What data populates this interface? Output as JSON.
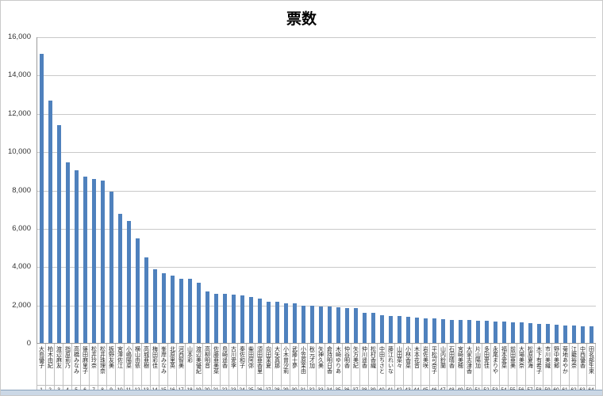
{
  "chart_data": {
    "type": "bar",
    "title": "票数",
    "legend": "none",
    "grid": true,
    "bar_color": "#4F81BD",
    "ylim": [
      0,
      16000
    ],
    "ytick_step": 2000,
    "ytick_labels": [
      "16,000",
      "14,000",
      "12,000",
      "10,000",
      "8,000",
      "6,000",
      "4,000",
      "2,000",
      "0"
    ],
    "categories": [
      "大島優子",
      "柏木由紀",
      "渡辺麻友",
      "指原莉乃",
      "高橋みなみ",
      "篠田麻里子",
      "松井玲奈",
      "松井珠理奈",
      "板野友美",
      "宮澤佐江",
      "小嶋陽菜",
      "横山由依",
      "高城亜樹",
      "梅田彩佳",
      "峯岸みなみ",
      "北原里英",
      "河西智美",
      "山本彩",
      "渡辺美優紀",
      "高柳明音",
      "佐藤亜美菜",
      "島崎遥香",
      "古川愛李",
      "秦佐和子",
      "柴田阿弥",
      "須田亜香里",
      "向田茉夏",
      "大矢真那",
      "小木曽汐莉",
      "武藤十夢",
      "小笠原茉由",
      "秋元才加",
      "矢神久美",
      "倉持明日香",
      "木崎ゆりあ",
      "仲谷明香",
      "矢方美紀",
      "仲川遥香",
      "松村香織",
      "中田ちさと",
      "藤江れいな",
      "山田菜々",
      "小林香菜",
      "木本花音",
      "岩佐美咲",
      "平松可奈子",
      "山内鈴蘭",
      "石田晴香",
      "宮崎美穂",
      "大家志津香",
      "片山陽加",
      "多田愛佳",
      "永尾まりや",
      "福本愛菜",
      "前田亜美",
      "大場美奈",
      "松原夏海",
      "木下有希子",
      "市川美織",
      "野中美郷",
      "菊地あやか",
      "江籠裕奈",
      "中西優香",
      "田名部生来"
    ],
    "ranks": [
      "1",
      "2",
      "3",
      "4",
      "5",
      "6",
      "7",
      "8",
      "9",
      "10",
      "11",
      "12",
      "13",
      "14",
      "15",
      "16",
      "17",
      "18",
      "19",
      "20",
      "21",
      "22",
      "23",
      "24",
      "25",
      "26",
      "27",
      "28",
      "29",
      "30",
      "31",
      "32",
      "33",
      "34",
      "35",
      "36",
      "37",
      "38",
      "39",
      "40",
      "41",
      "42",
      "43",
      "44",
      "45",
      "46",
      "47",
      "48",
      "49",
      "50",
      "51",
      "52",
      "53",
      "54",
      "55",
      "56",
      "57",
      "58",
      "59",
      "60",
      "61",
      "62",
      "63",
      "64"
    ],
    "values": [
      15100,
      12650,
      11370,
      9440,
      9020,
      8700,
      8540,
      8470,
      7890,
      6750,
      6370,
      5440,
      4480,
      3860,
      3650,
      3510,
      3370,
      3360,
      3140,
      2690,
      2580,
      2550,
      2540,
      2500,
      2410,
      2310,
      2150,
      2130,
      2070,
      2050,
      1950,
      1930,
      1900,
      1890,
      1860,
      1830,
      1820,
      1580,
      1570,
      1450,
      1400,
      1390,
      1360,
      1330,
      1290,
      1270,
      1230,
      1210,
      1200,
      1180,
      1170,
      1150,
      1120,
      1100,
      1080,
      1060,
      1020,
      1010,
      980,
      960,
      910,
      890,
      870,
      860
    ]
  },
  "colors": {
    "gridline": "#c9c9c9",
    "axis_line": "#9b9b9b",
    "cell_border": "#bfbfbf",
    "bottom_strip": "#cbd8e6"
  }
}
